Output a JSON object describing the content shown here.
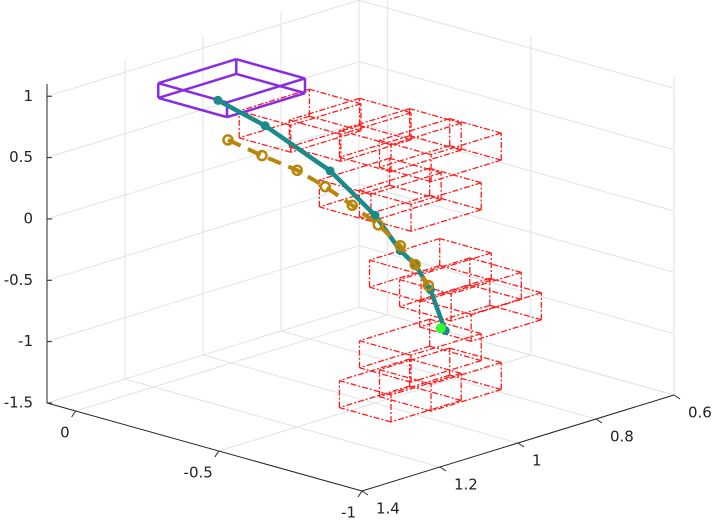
{
  "chart_data": {
    "type": "line3d",
    "xlim": [
      0.1,
      -1
    ],
    "ylim": [
      1.4,
      0.6
    ],
    "zlim": [
      -1.5,
      1.1
    ],
    "xticks": [
      0,
      -0.5,
      -1
    ],
    "yticks": [
      0.6,
      0.8,
      1,
      1.2,
      1.4
    ],
    "zticks": [
      -1.5,
      -1,
      -0.5,
      0,
      0.5,
      1
    ],
    "grid": true,
    "series": [
      {
        "color": "#1a8a8a",
        "style": "solid",
        "x": [
          0.048,
          -0.117,
          -0.344,
          -0.501,
          -0.589,
          -0.641,
          -0.694,
          -0.746
        ],
        "y": [
          1,
          1,
          1,
          1,
          1,
          1,
          1,
          1
        ],
        "z": [
          0.61,
          0.51,
          0.29,
          0.03,
          -0.2,
          -0.28,
          -0.45,
          -0.75
        ]
      },
      {
        "color": "#b8860b",
        "style": "dashed",
        "x": [
          0.013,
          -0.106,
          -0.229,
          -0.327,
          -0.421,
          -0.512,
          -0.589,
          -0.641,
          -0.687
        ],
        "y": [
          1,
          1,
          1,
          1,
          1,
          1,
          1,
          1,
          1
        ],
        "z": [
          0.31,
          0.26,
          0.22,
          0.15,
          0.06,
          -0.04,
          -0.16,
          -0.28,
          -0.42
        ]
      }
    ],
    "goal": {
      "color": "#33ff33",
      "x": -0.73,
      "y": 1,
      "z": -0.74
    },
    "start_box": {
      "color": "#8a2be2",
      "x": 0,
      "y": 1,
      "z": 0.74
    },
    "boxes_color": "#ff1a1a",
    "boxes": [
      {
        "x": -0.239,
        "y": 1,
        "z": 0.63
      },
      {
        "x": -0.414,
        "y": 1,
        "z": 0.67
      },
      {
        "x": -0.589,
        "y": 1,
        "z": 0.7
      },
      {
        "x": -0.729,
        "y": 1,
        "z": 0.71
      },
      {
        "x": -0.519,
        "y": 1,
        "z": 0.25
      },
      {
        "x": -0.659,
        "y": 1,
        "z": 0.26
      },
      {
        "x": -0.694,
        "y": 1,
        "z": -0.29
      },
      {
        "x": -0.799,
        "y": 1,
        "z": -0.38
      },
      {
        "x": -0.869,
        "y": 1,
        "z": -0.5
      },
      {
        "x": -0.659,
        "y": 1,
        "z": -0.97
      },
      {
        "x": -0.729,
        "y": 1,
        "z": -1.16
      },
      {
        "x": -0.589,
        "y": 1,
        "z": -1.34
      }
    ]
  }
}
